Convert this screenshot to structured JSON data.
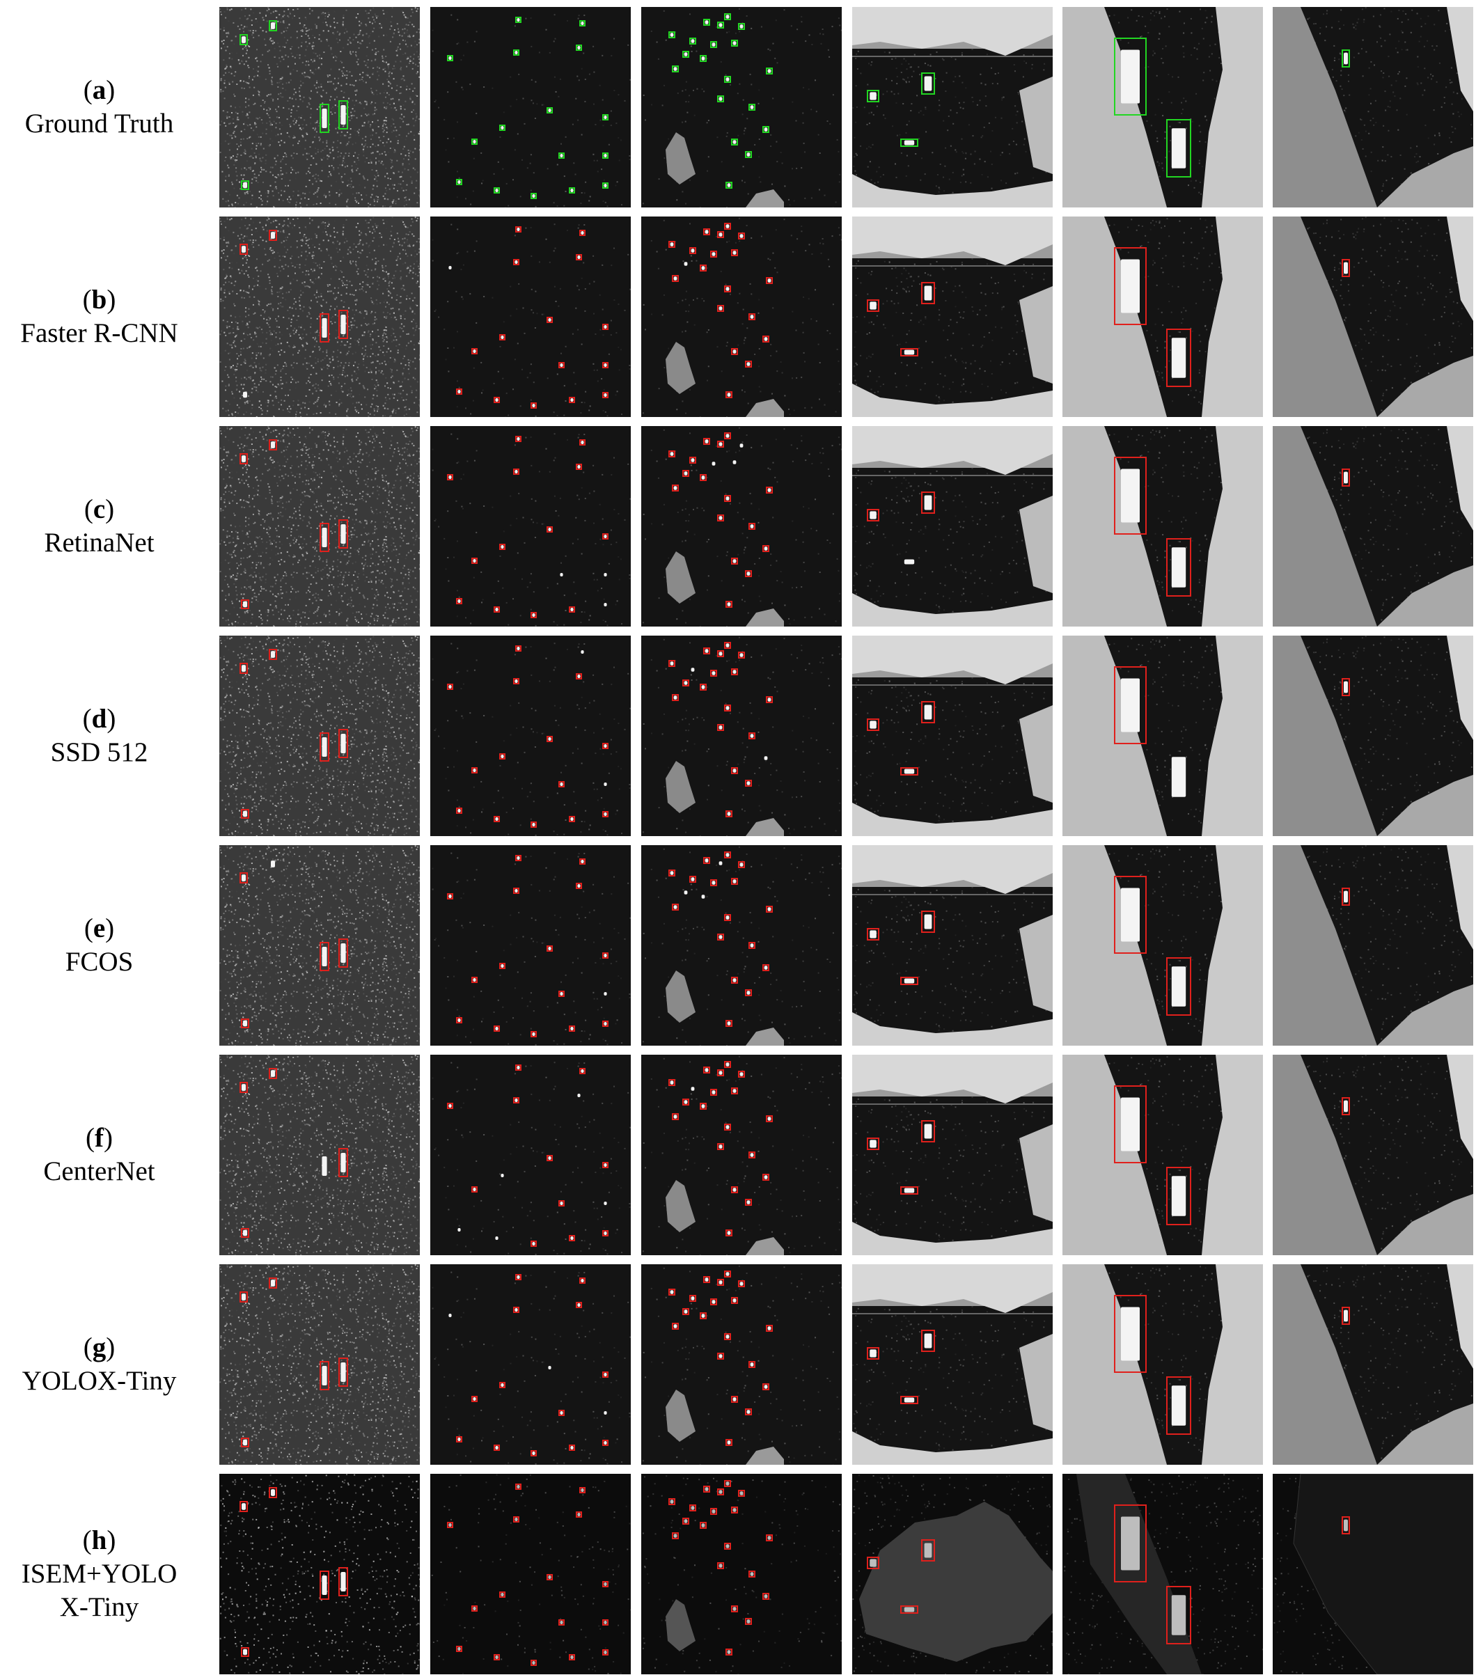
{
  "rows": [
    {
      "letter": "a",
      "name": "Ground Truth",
      "box_color": "#22d622",
      "variant": "gt"
    },
    {
      "letter": "b",
      "name": "Faster R-CNN",
      "box_color": "#e0201c",
      "variant": "std"
    },
    {
      "letter": "c",
      "name": "RetinaNet",
      "box_color": "#e0201c",
      "variant": "std"
    },
    {
      "letter": "d",
      "name": "SSD 512",
      "box_color": "#e0201c",
      "variant": "std"
    },
    {
      "letter": "e",
      "name": "FCOS",
      "box_color": "#e0201c",
      "variant": "std"
    },
    {
      "letter": "f",
      "name": "CenterNet",
      "box_color": "#e0201c",
      "variant": "std"
    },
    {
      "letter": "g",
      "name": "YOLOX-Tiny",
      "box_color": "#e0201c",
      "variant": "std"
    },
    {
      "letter": "h",
      "name": "ISEM+YOLO\nX-Tiny",
      "box_color": "#e0201c",
      "variant": "enhanced"
    }
  ],
  "columns": [
    {
      "scene": "noisy-sea"
    },
    {
      "scene": "dark-sea"
    },
    {
      "scene": "dark-sea-island"
    },
    {
      "scene": "harbor"
    },
    {
      "scene": "inshore-large"
    },
    {
      "scene": "coast-single"
    }
  ]
}
